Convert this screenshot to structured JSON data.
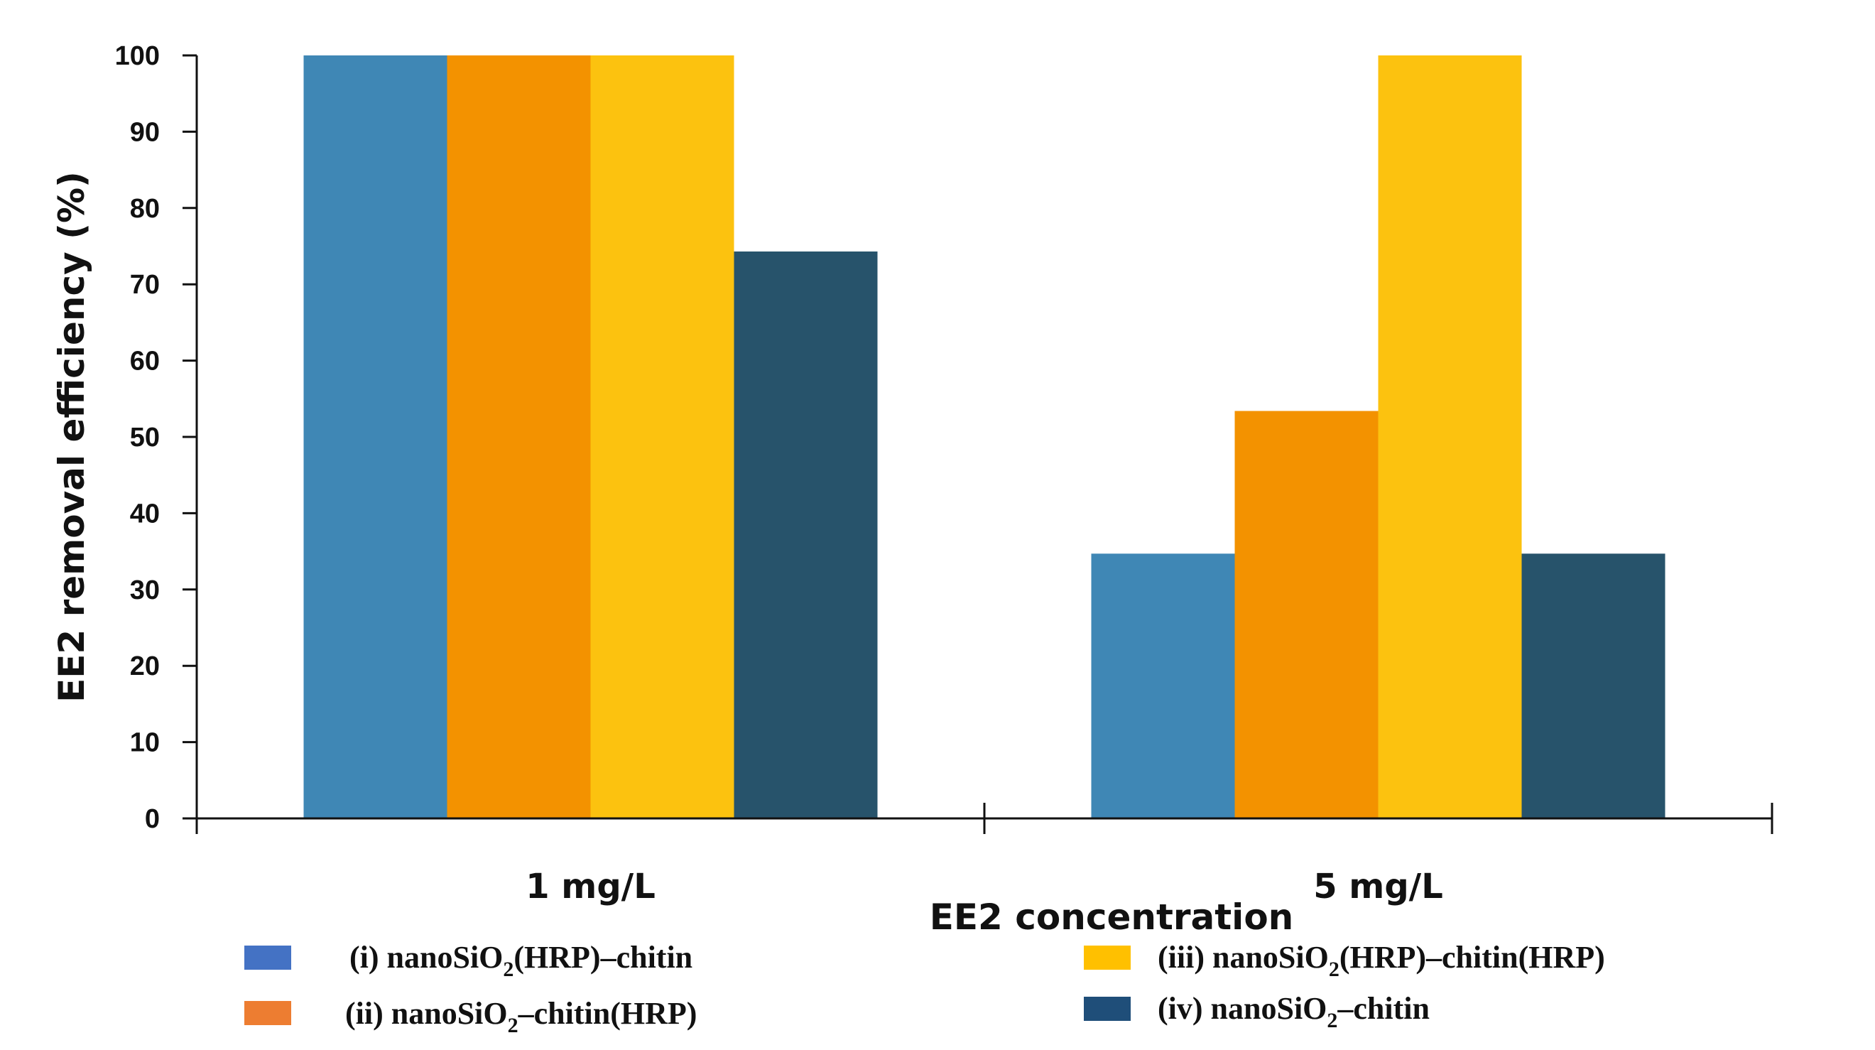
{
  "chart_data": {
    "type": "bar",
    "title": "",
    "xlabel": "EE2 concentration",
    "ylabel": "EE2 removal efficiency (%)",
    "ylim": [
      0,
      100
    ],
    "yticks": [
      0,
      10,
      20,
      30,
      40,
      50,
      60,
      70,
      80,
      90,
      100
    ],
    "categories": [
      "1 mg/L",
      "5 mg/L"
    ],
    "series": [
      {
        "name": "(i) nanoSiO2(HRP)–chitin",
        "legend_parts": [
          "(i) nanoSiO",
          "2",
          "(HRP)–chitin"
        ],
        "bar_color": "#3F87B5",
        "legend_color": "#4472C4",
        "values": [
          100,
          34.7
        ]
      },
      {
        "name": "(ii) nanoSiO2–chitin(HRP)",
        "legend_parts": [
          "(ii) nanoSiO",
          "2",
          "–chitin(HRP)"
        ],
        "bar_color": "#F39200",
        "legend_color": "#ED7D31",
        "values": [
          100,
          53.4
        ]
      },
      {
        "name": "(iii) nanoSiO2(HRP)–chitin(HRP)",
        "legend_parts": [
          "(iii) nanoSiO",
          "2",
          "(HRP)–chitin(HRP)"
        ],
        "bar_color": "#FCC20F",
        "legend_color": "#FFC000",
        "values": [
          100,
          100
        ]
      },
      {
        "name": "(iv) nanoSiO2–chitin",
        "legend_parts": [
          "(iv) nanoSiO",
          "2",
          "–chitin"
        ],
        "bar_color": "#27536B",
        "legend_color": "#1F4E79",
        "values": [
          74.3,
          34.7
        ]
      }
    ],
    "legend_position": "bottom",
    "grid": false
  }
}
